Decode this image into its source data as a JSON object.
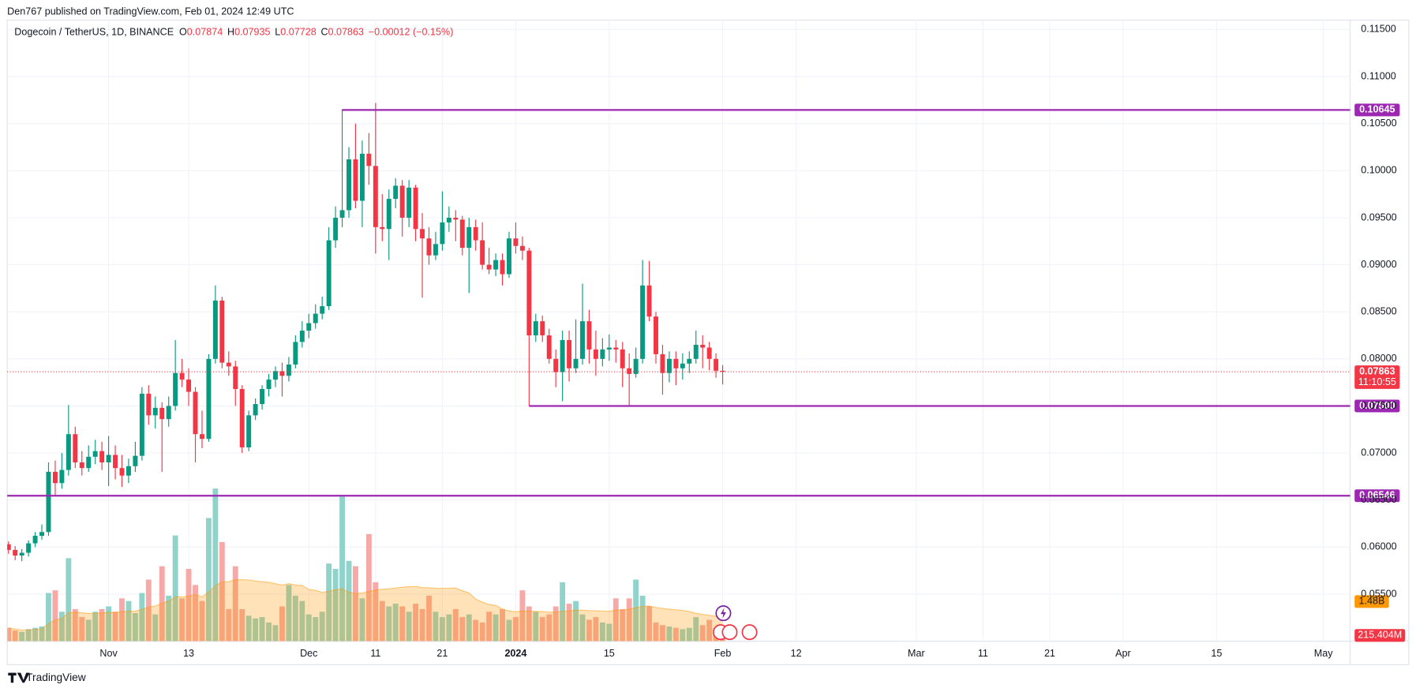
{
  "header": "Den767 published on TradingView.com, Feb 01, 2024 12:49 UTC",
  "footer": "TradingView",
  "chart_data": {
    "type": "candlestick",
    "symbol": "Dogecoin / TetherUS, 1D, BINANCE",
    "ohlc_keys": [
      "O",
      "H",
      "L",
      "C"
    ],
    "change": "−0.00012 (−0.15%)",
    "countdown": "11:10:55",
    "x": [
      "2023-10-17",
      "2023-10-18",
      "2023-10-19",
      "2023-10-20",
      "2023-10-21",
      "2023-10-22",
      "2023-10-23",
      "2023-10-24",
      "2023-10-25",
      "2023-10-26",
      "2023-10-27",
      "2023-10-28",
      "2023-10-29",
      "2023-10-30",
      "2023-10-31",
      "2023-11-01",
      "2023-11-02",
      "2023-11-03",
      "2023-11-04",
      "2023-11-05",
      "2023-11-06",
      "2023-11-07",
      "2023-11-08",
      "2023-11-09",
      "2023-11-10",
      "2023-11-11",
      "2023-11-12",
      "2023-11-13",
      "2023-11-14",
      "2023-11-15",
      "2023-11-16",
      "2023-11-17",
      "2023-11-18",
      "2023-11-19",
      "2023-11-20",
      "2023-11-21",
      "2023-11-22",
      "2023-11-23",
      "2023-11-24",
      "2023-11-25",
      "2023-11-26",
      "2023-11-27",
      "2023-11-28",
      "2023-11-29",
      "2023-11-30",
      "2023-12-01",
      "2023-12-02",
      "2023-12-03",
      "2023-12-04",
      "2023-12-05",
      "2023-12-06",
      "2023-12-07",
      "2023-12-08",
      "2023-12-09",
      "2023-12-10",
      "2023-12-11",
      "2023-12-12",
      "2023-12-13",
      "2023-12-14",
      "2023-12-15",
      "2023-12-16",
      "2023-12-17",
      "2023-12-18",
      "2023-12-19",
      "2023-12-20",
      "2023-12-21",
      "2023-12-22",
      "2023-12-23",
      "2023-12-24",
      "2023-12-25",
      "2023-12-26",
      "2023-12-27",
      "2023-12-28",
      "2023-12-29",
      "2023-12-30",
      "2023-12-31",
      "2024-01-01",
      "2024-01-02",
      "2024-01-03",
      "2024-01-04",
      "2024-01-05",
      "2024-01-06",
      "2024-01-07",
      "2024-01-08",
      "2024-01-09",
      "2024-01-10",
      "2024-01-11",
      "2024-01-12",
      "2024-01-13",
      "2024-01-14",
      "2024-01-15",
      "2024-01-16",
      "2024-01-17",
      "2024-01-18",
      "2024-01-19",
      "2024-01-20",
      "2024-01-21",
      "2024-01-22",
      "2024-01-23",
      "2024-01-24",
      "2024-01-25",
      "2024-01-26",
      "2024-01-27",
      "2024-01-28",
      "2024-01-29",
      "2024-01-30",
      "2024-01-31",
      "2024-02-01"
    ],
    "ohlc": [
      [
        0.0603,
        0.0606,
        0.0593,
        0.0597
      ],
      [
        0.0597,
        0.0601,
        0.0586,
        0.0591
      ],
      [
        0.0591,
        0.0598,
        0.0585,
        0.0594
      ],
      [
        0.0594,
        0.0607,
        0.059,
        0.0604
      ],
      [
        0.0604,
        0.0616,
        0.06,
        0.0612
      ],
      [
        0.0612,
        0.0624,
        0.0608,
        0.0616
      ],
      [
        0.0616,
        0.069,
        0.0612,
        0.068
      ],
      [
        0.068,
        0.0692,
        0.0655,
        0.0668
      ],
      [
        0.0668,
        0.07,
        0.0662,
        0.0682
      ],
      [
        0.0682,
        0.0751,
        0.0676,
        0.072
      ],
      [
        0.072,
        0.0728,
        0.0684,
        0.069
      ],
      [
        0.069,
        0.0702,
        0.0676,
        0.0684
      ],
      [
        0.0684,
        0.0708,
        0.068,
        0.0696
      ],
      [
        0.0696,
        0.0714,
        0.0688,
        0.0702
      ],
      [
        0.0702,
        0.0712,
        0.0682,
        0.069
      ],
      [
        0.069,
        0.0718,
        0.0665,
        0.0698
      ],
      [
        0.0698,
        0.0708,
        0.0672,
        0.0684
      ],
      [
        0.0684,
        0.0698,
        0.0664,
        0.0676
      ],
      [
        0.0676,
        0.0694,
        0.0668,
        0.0686
      ],
      [
        0.0686,
        0.0712,
        0.068,
        0.0697
      ],
      [
        0.0697,
        0.077,
        0.0692,
        0.0763
      ],
      [
        0.0763,
        0.0772,
        0.073,
        0.074
      ],
      [
        0.074,
        0.076,
        0.0726,
        0.0748
      ],
      [
        0.0748,
        0.0754,
        0.068,
        0.0736
      ],
      [
        0.0736,
        0.076,
        0.0728,
        0.075
      ],
      [
        0.075,
        0.082,
        0.0745,
        0.0785
      ],
      [
        0.0785,
        0.08,
        0.077,
        0.0778
      ],
      [
        0.0778,
        0.079,
        0.075,
        0.0765
      ],
      [
        0.0765,
        0.077,
        0.069,
        0.072
      ],
      [
        0.072,
        0.0745,
        0.0705,
        0.0715
      ],
      [
        0.0715,
        0.0805,
        0.0712,
        0.08
      ],
      [
        0.08,
        0.0878,
        0.0795,
        0.0862
      ],
      [
        0.0862,
        0.0866,
        0.079,
        0.0796
      ],
      [
        0.0796,
        0.0808,
        0.0782,
        0.0792
      ],
      [
        0.0792,
        0.0798,
        0.075,
        0.0768
      ],
      [
        0.0768,
        0.0772,
        0.07,
        0.0706
      ],
      [
        0.0706,
        0.0745,
        0.0702,
        0.074
      ],
      [
        0.074,
        0.0758,
        0.0735,
        0.0752
      ],
      [
        0.0752,
        0.0772,
        0.0746,
        0.0768
      ],
      [
        0.0768,
        0.0784,
        0.076,
        0.0778
      ],
      [
        0.0778,
        0.0792,
        0.077,
        0.0787
      ],
      [
        0.0787,
        0.0796,
        0.076,
        0.0782
      ],
      [
        0.0782,
        0.0802,
        0.0776,
        0.0794
      ],
      [
        0.0794,
        0.0825,
        0.079,
        0.0818
      ],
      [
        0.0818,
        0.084,
        0.0812,
        0.083
      ],
      [
        0.083,
        0.0848,
        0.0822,
        0.0838
      ],
      [
        0.0838,
        0.0858,
        0.0832,
        0.0848
      ],
      [
        0.0848,
        0.0866,
        0.0842,
        0.0856
      ],
      [
        0.0856,
        0.094,
        0.0852,
        0.0926
      ],
      [
        0.0926,
        0.0962,
        0.0918,
        0.095
      ],
      [
        0.095,
        0.1065,
        0.094,
        0.0958
      ],
      [
        0.0958,
        0.1025,
        0.095,
        0.1012
      ],
      [
        0.1012,
        0.105,
        0.096,
        0.0968
      ],
      [
        0.0968,
        0.1032,
        0.094,
        0.1018
      ],
      [
        0.1018,
        0.104,
        0.0985,
        0.1005
      ],
      [
        0.1005,
        0.1072,
        0.0912,
        0.094
      ],
      [
        0.094,
        0.0975,
        0.0925,
        0.0938
      ],
      [
        0.0938,
        0.098,
        0.0905,
        0.097
      ],
      [
        0.097,
        0.0992,
        0.096,
        0.0984
      ],
      [
        0.0984,
        0.099,
        0.093,
        0.095
      ],
      [
        0.095,
        0.099,
        0.094,
        0.0982
      ],
      [
        0.0982,
        0.0985,
        0.0925,
        0.0938
      ],
      [
        0.0938,
        0.0955,
        0.0865,
        0.0928
      ],
      [
        0.0928,
        0.094,
        0.09,
        0.091
      ],
      [
        0.091,
        0.0935,
        0.0905,
        0.0922
      ],
      [
        0.0922,
        0.0978,
        0.0915,
        0.0945
      ],
      [
        0.0945,
        0.0962,
        0.0935,
        0.095
      ],
      [
        0.095,
        0.0958,
        0.0925,
        0.0948
      ],
      [
        0.0948,
        0.0952,
        0.091,
        0.0918
      ],
      [
        0.0918,
        0.095,
        0.087,
        0.094
      ],
      [
        0.094,
        0.0948,
        0.0915,
        0.0926
      ],
      [
        0.0926,
        0.0945,
        0.0895,
        0.09
      ],
      [
        0.09,
        0.0918,
        0.089,
        0.0895
      ],
      [
        0.0895,
        0.0912,
        0.0888,
        0.0905
      ],
      [
        0.0905,
        0.0912,
        0.0878,
        0.089
      ],
      [
        0.089,
        0.0935,
        0.0886,
        0.0928
      ],
      [
        0.0928,
        0.0945,
        0.0912,
        0.092
      ],
      [
        0.092,
        0.093,
        0.0905,
        0.0915
      ],
      [
        0.0915,
        0.0918,
        0.075,
        0.0825
      ],
      [
        0.0825,
        0.0848,
        0.0818,
        0.084
      ],
      [
        0.084,
        0.0846,
        0.0818,
        0.0825
      ],
      [
        0.0825,
        0.0832,
        0.0795,
        0.08
      ],
      [
        0.08,
        0.081,
        0.077,
        0.0786
      ],
      [
        0.0786,
        0.083,
        0.0755,
        0.082
      ],
      [
        0.082,
        0.083,
        0.0776,
        0.079
      ],
      [
        0.079,
        0.0842,
        0.0785,
        0.08
      ],
      [
        0.08,
        0.088,
        0.0794,
        0.084
      ],
      [
        0.084,
        0.0852,
        0.0795,
        0.081
      ],
      [
        0.081,
        0.083,
        0.0782,
        0.08
      ],
      [
        0.08,
        0.0822,
        0.0792,
        0.081
      ],
      [
        0.081,
        0.0826,
        0.0798,
        0.0812
      ],
      [
        0.0812,
        0.082,
        0.0796,
        0.081
      ],
      [
        0.081,
        0.0818,
        0.077,
        0.079
      ],
      [
        0.079,
        0.0806,
        0.075,
        0.0784
      ],
      [
        0.0784,
        0.0812,
        0.078,
        0.08
      ],
      [
        0.08,
        0.0905,
        0.0795,
        0.0878
      ],
      [
        0.0878,
        0.0904,
        0.084,
        0.0845
      ],
      [
        0.0845,
        0.085,
        0.0795,
        0.0805
      ],
      [
        0.0805,
        0.0815,
        0.0762,
        0.0785
      ],
      [
        0.0785,
        0.0808,
        0.0775,
        0.08
      ],
      [
        0.08,
        0.0808,
        0.0772,
        0.079
      ],
      [
        0.079,
        0.0806,
        0.0778,
        0.0795
      ],
      [
        0.0795,
        0.0808,
        0.0785,
        0.08
      ],
      [
        0.08,
        0.083,
        0.0795,
        0.0815
      ],
      [
        0.0815,
        0.0825,
        0.079,
        0.0812
      ],
      [
        0.0812,
        0.0818,
        0.0788,
        0.08
      ],
      [
        0.08,
        0.0806,
        0.078,
        0.07874
      ],
      [
        0.07874,
        0.07935,
        0.07728,
        0.07863
      ]
    ],
    "volume": [
      500,
      400,
      350,
      450,
      500,
      550,
      1800,
      1900,
      1100,
      3100,
      1200,
      900,
      800,
      1100,
      1200,
      1300,
      1100,
      1600,
      1500,
      1050,
      1800,
      2300,
      1000,
      2800,
      1700,
      3950,
      1600,
      2700,
      2100,
      1500,
      4600,
      5700,
      3700,
      1200,
      2800,
      1200,
      950,
      850,
      900,
      700,
      600,
      1300,
      2100,
      1700,
      1500,
      1000,
      900,
      1100,
      2900,
      2700,
      5400,
      3000,
      2800,
      1600,
      4000,
      2200,
      1500,
      1300,
      1400,
      1300,
      1100,
      1400,
      1200,
      1700,
      1100,
      900,
      1000,
      1200,
      900,
      1000,
      800,
      700,
      1100,
      1000,
      1200,
      800,
      900,
      1900,
      1300,
      1100,
      900,
      1000,
      1300,
      2200,
      1400,
      1500,
      1000,
      800,
      900,
      700,
      650,
      1600,
      1200,
      1600,
      2300,
      1700,
      1300,
      700,
      600,
      550,
      500,
      450,
      500,
      900,
      600,
      800,
      300,
      215.404
    ],
    "volume_ylim": [
      0,
      6000
    ],
    "volume_ma_label": {
      "value": 1480,
      "label": "1.48B"
    },
    "volume_last_label": "215.404M",
    "ylim": [
      0.05,
      0.116
    ],
    "yticks": [
      {
        "value": 0.115,
        "label": "0.11500"
      },
      {
        "value": 0.11,
        "label": "0.11000"
      },
      {
        "value": 0.105,
        "label": "0.10500"
      },
      {
        "value": 0.1,
        "label": "0.10000"
      },
      {
        "value": 0.095,
        "label": "0.09500"
      },
      {
        "value": 0.09,
        "label": "0.09000"
      },
      {
        "value": 0.085,
        "label": "0.08500"
      },
      {
        "value": 0.08,
        "label": "0.08000"
      },
      {
        "value": 0.075,
        "label": "0.07500"
      },
      {
        "value": 0.07,
        "label": "0.07000"
      },
      {
        "value": 0.065,
        "label": "0.06500"
      },
      {
        "value": 0.06,
        "label": "0.06000"
      },
      {
        "value": 0.055,
        "label": "0.05500"
      }
    ],
    "xlim": [
      "2023-10-16",
      "2024-05-05"
    ],
    "xticks": [
      {
        "value": "2023-11-01",
        "label": "Nov"
      },
      {
        "value": "2023-11-13",
        "label": "13"
      },
      {
        "value": "2023-12-01",
        "label": "Dec"
      },
      {
        "value": "2023-12-11",
        "label": "11"
      },
      {
        "value": "2023-12-21",
        "label": "21"
      },
      {
        "value": "2024-01-01",
        "label": "2024"
      },
      {
        "value": "2024-01-15",
        "label": "15"
      },
      {
        "value": "2024-02-01",
        "label": "Feb"
      },
      {
        "value": "2024-02-12",
        "label": "12"
      },
      {
        "value": "2024-03-01",
        "label": "Mar"
      },
      {
        "value": "2024-03-11",
        "label": "11"
      },
      {
        "value": "2024-03-21",
        "label": "21"
      },
      {
        "value": "2024-04-01",
        "label": "Apr"
      },
      {
        "value": "2024-04-15",
        "label": "15"
      },
      {
        "value": "2024-05-01",
        "label": "May"
      }
    ],
    "levels": [
      {
        "value": 0.10645,
        "label": "0.10645",
        "start": "2023-12-06"
      },
      {
        "value": 0.075,
        "label": "0.07500",
        "start": "2024-01-03"
      },
      {
        "value": 0.06546,
        "label": "0.06546"
      }
    ],
    "colors": {
      "up": "#089981",
      "down": "#f23645",
      "level": "#9c27b0",
      "volume_up": "#8fd3cb",
      "volume_down": "#f7a9a7",
      "volume_ma": "#ff9800"
    },
    "grid": true
  }
}
